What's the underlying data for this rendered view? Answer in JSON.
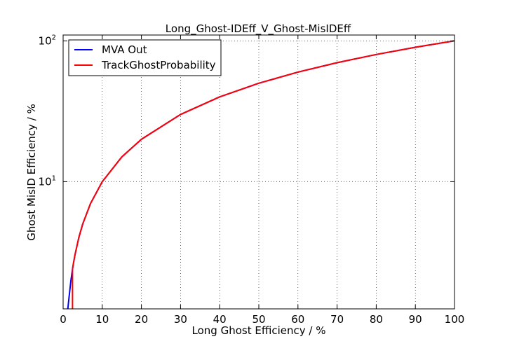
{
  "chart_data": {
    "type": "line",
    "title": "Long_Ghost-IDEff_V_Ghost-MisIDEff",
    "xlabel": "Long Ghost Efficiency / %",
    "ylabel": "Ghost MisID Efficiency / %",
    "xlim": [
      0,
      100
    ],
    "ylim": [
      1.25,
      110
    ],
    "yscale": "log",
    "grid": true,
    "legend_position": "top-left",
    "x_ticks": [
      {
        "value": 0,
        "label": "0"
      },
      {
        "value": 10,
        "label": "10"
      },
      {
        "value": 20,
        "label": "20"
      },
      {
        "value": 30,
        "label": "30"
      },
      {
        "value": 40,
        "label": "40"
      },
      {
        "value": 50,
        "label": "50"
      },
      {
        "value": 60,
        "label": "60"
      },
      {
        "value": 70,
        "label": "70"
      },
      {
        "value": 80,
        "label": "80"
      },
      {
        "value": 90,
        "label": "90"
      },
      {
        "value": 100,
        "label": "100"
      }
    ],
    "y_ticks": [
      {
        "value": 10,
        "base": "10",
        "exp": "1"
      },
      {
        "value": 100,
        "base": "10",
        "exp": "2"
      }
    ],
    "series": [
      {
        "name": "MVA Out",
        "color": "#0000ff",
        "x": [
          1.2,
          1.5,
          2.0,
          2.5,
          3,
          4,
          5,
          7,
          10,
          15,
          20,
          30,
          40,
          50,
          60,
          70,
          80,
          90,
          100
        ],
        "y": [
          1.25,
          1.5,
          2.0,
          2.5,
          3,
          4,
          5,
          7,
          10,
          15,
          20,
          30,
          40,
          50,
          60,
          70,
          80,
          90,
          100
        ]
      },
      {
        "name": "TrackGhostProbability",
        "color": "#ff0000",
        "x": [
          2.4,
          2.4,
          2.5,
          3,
          4,
          5,
          7,
          10,
          15,
          20,
          30,
          40,
          50,
          60,
          70,
          80,
          90,
          100
        ],
        "y": [
          1.25,
          2.4,
          2.5,
          3,
          4,
          5,
          7,
          10,
          15,
          20,
          30,
          40,
          50,
          60,
          70,
          80,
          90,
          100
        ]
      }
    ]
  }
}
